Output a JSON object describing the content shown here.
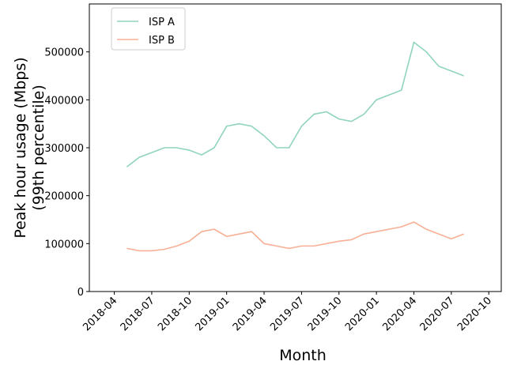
{
  "chart_data": {
    "type": "line",
    "xlabel": "Month",
    "ylabel": [
      "Peak hour usage (Mbps)",
      "(99th percentile)"
    ],
    "x": [
      "2018-05",
      "2018-06",
      "2018-07",
      "2018-08",
      "2018-09",
      "2018-10",
      "2018-11",
      "2018-12",
      "2019-01",
      "2019-02",
      "2019-03",
      "2019-04",
      "2019-05",
      "2019-06",
      "2019-07",
      "2019-08",
      "2019-09",
      "2019-10",
      "2019-11",
      "2019-12",
      "2020-01",
      "2020-02",
      "2020-03",
      "2020-04",
      "2020-05",
      "2020-06",
      "2020-07",
      "2020-08"
    ],
    "series": [
      {
        "name": "ISP A",
        "color": "#8fd4bd",
        "values": [
          260000,
          280000,
          290000,
          300000,
          300000,
          295000,
          285000,
          300000,
          345000,
          350000,
          345000,
          325000,
          300000,
          300000,
          345000,
          370000,
          375000,
          360000,
          355000,
          370000,
          400000,
          410000,
          420000,
          520000,
          500000,
          470000,
          460000,
          450000
        ]
      },
      {
        "name": "ISP B",
        "color": "#f7b095",
        "values": [
          90000,
          85000,
          85000,
          88000,
          95000,
          105000,
          125000,
          130000,
          115000,
          120000,
          125000,
          100000,
          95000,
          90000,
          95000,
          95000,
          100000,
          105000,
          108000,
          120000,
          125000,
          130000,
          135000,
          145000,
          130000,
          120000,
          110000,
          120000
        ]
      }
    ],
    "xlim": [
      "2018-02",
      "2020-11"
    ],
    "xticks": [
      "2018-04",
      "2018-07",
      "2018-10",
      "2019-01",
      "2019-04",
      "2019-07",
      "2019-10",
      "2020-01",
      "2020-04",
      "2020-07",
      "2020-10"
    ],
    "ylim": [
      0,
      600000
    ],
    "yticks": [
      0,
      100000,
      200000,
      300000,
      400000,
      500000
    ],
    "legend": "upper-left"
  }
}
